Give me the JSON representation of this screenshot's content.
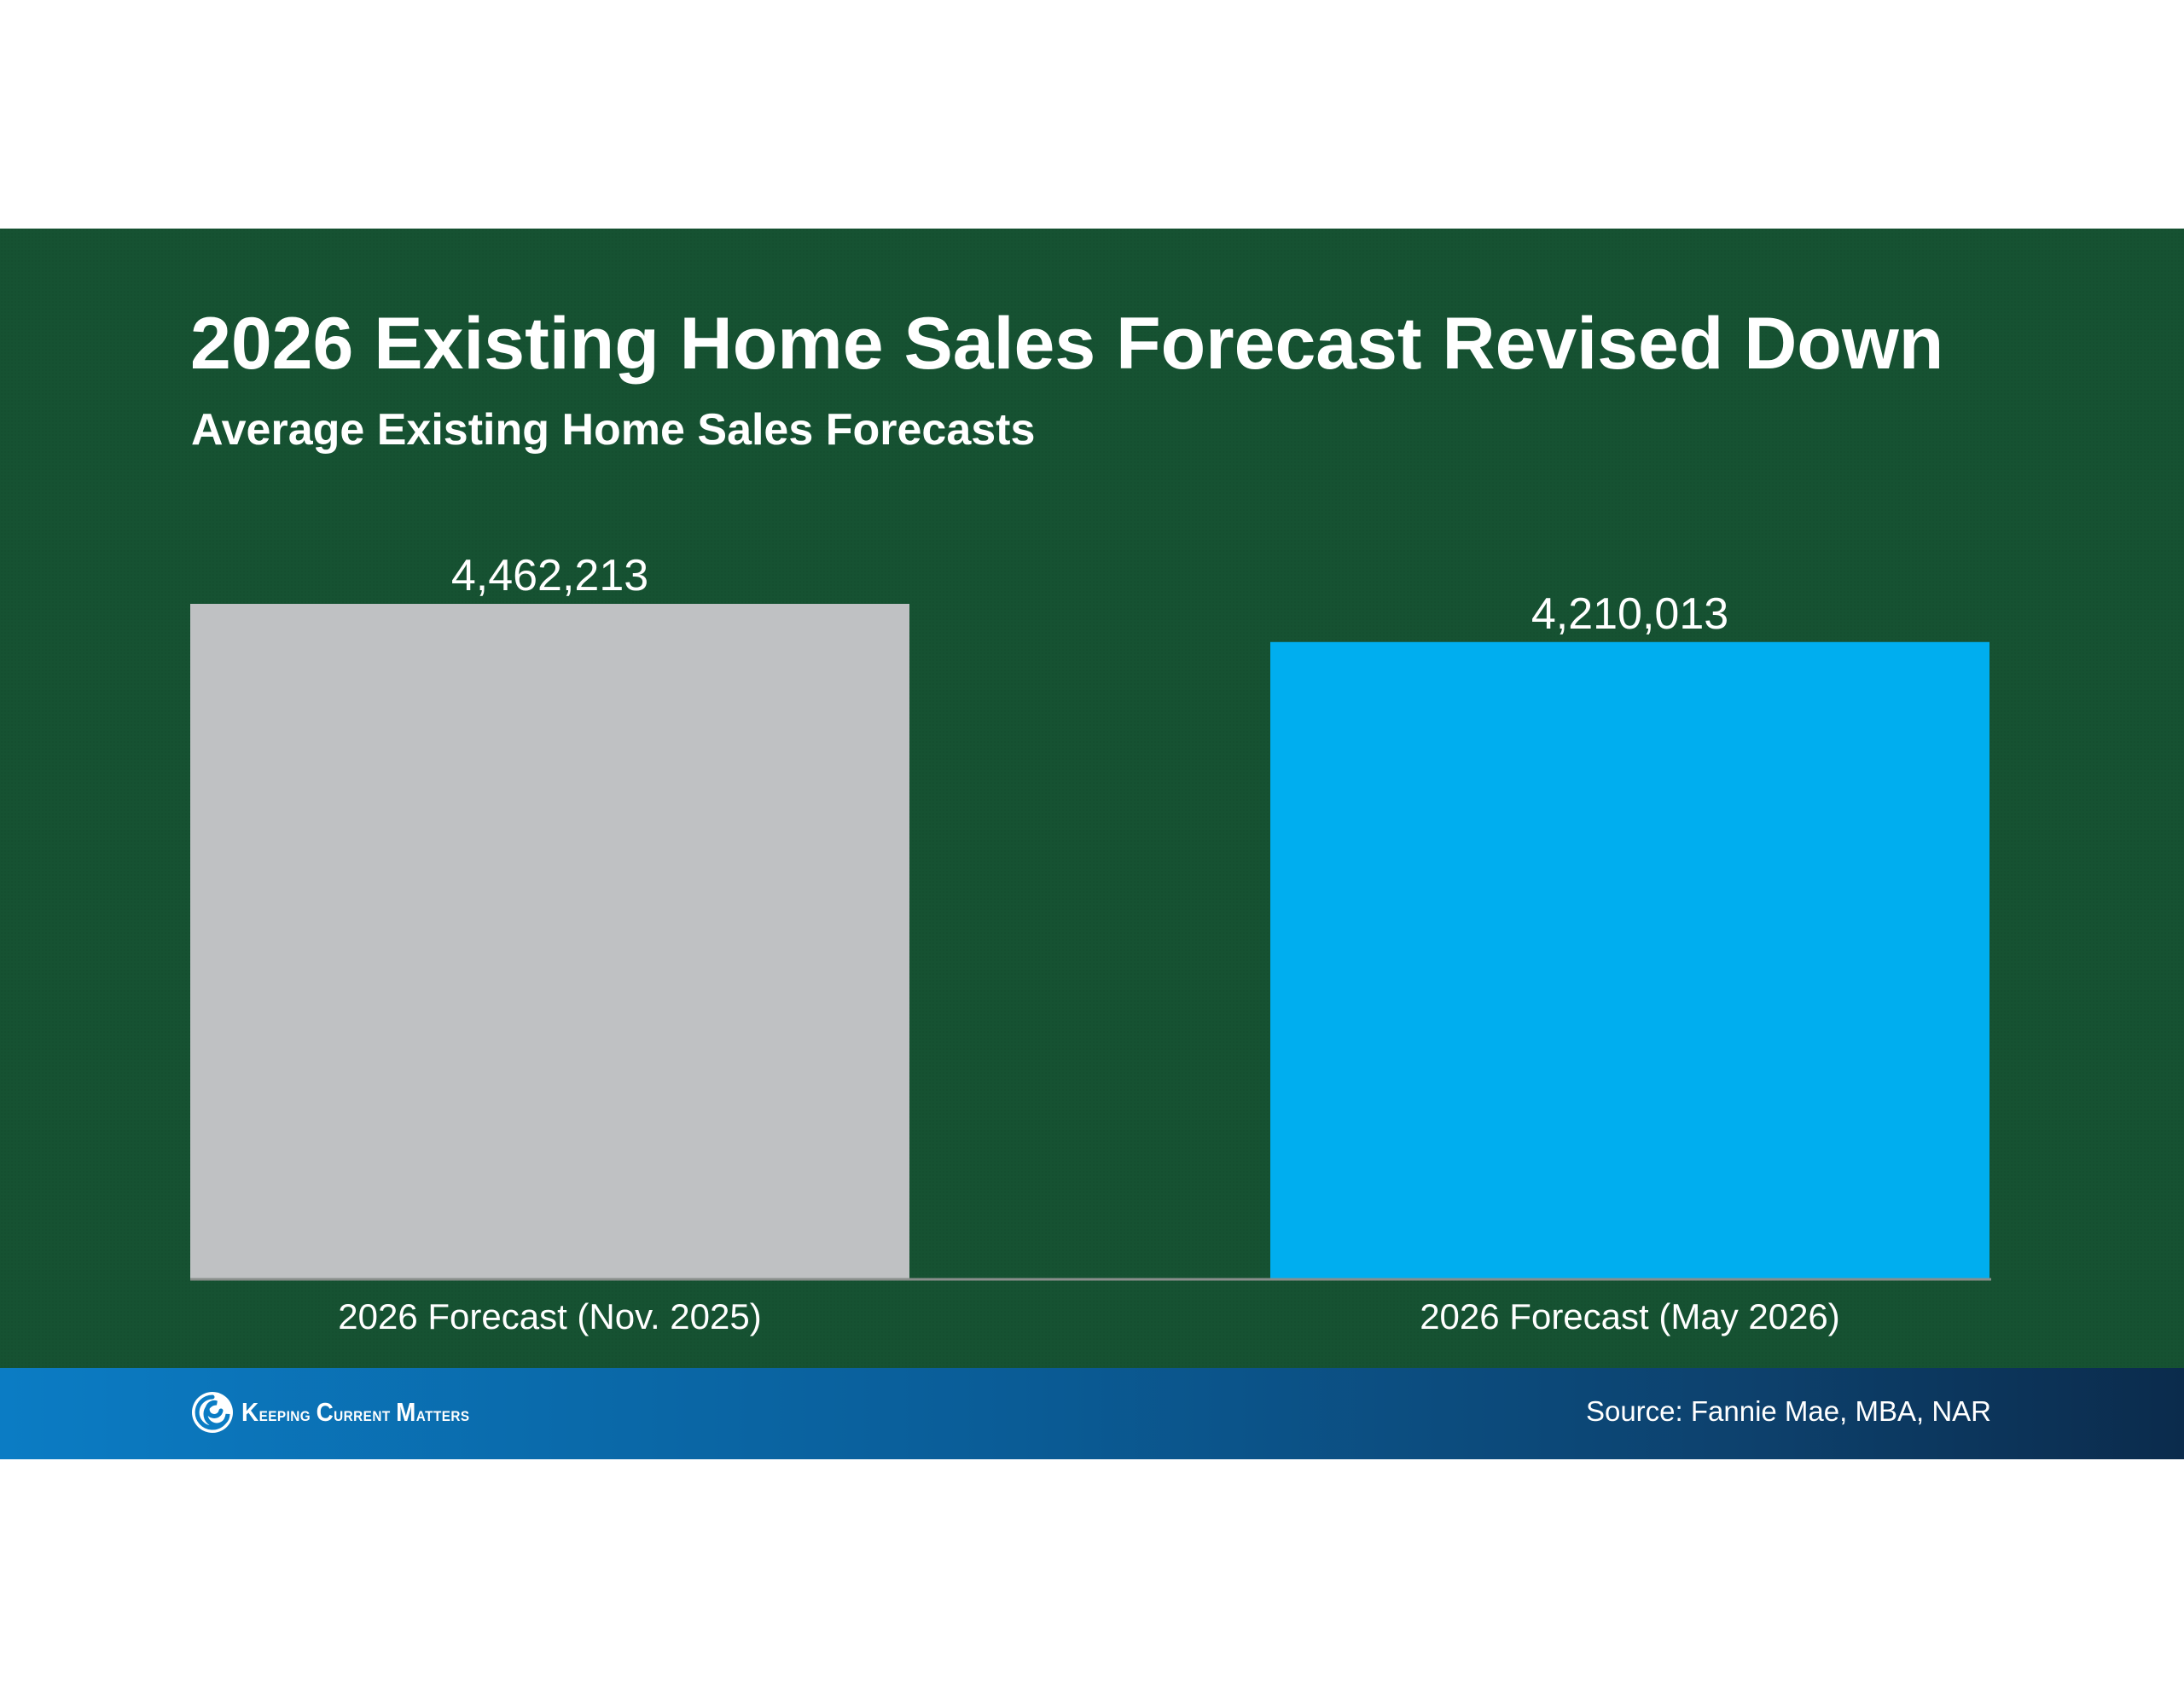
{
  "title": "2026 Existing Home Sales Forecast Revised Down",
  "subtitle": "Average Existing Home Sales Forecasts",
  "chart_data": {
    "type": "bar",
    "title": "2026 Existing Home Sales Forecast Revised Down",
    "subtitle": "Average Existing Home Sales Forecasts",
    "categories": [
      "2026 Forecast (Nov. 2025)",
      "2026 Forecast (May 2026)"
    ],
    "values": [
      4462213,
      4210013
    ],
    "value_labels": [
      "4,462,213",
      "4,210,013"
    ],
    "bar_colors": [
      "#bfc1c3",
      "#00aeef"
    ],
    "xlabel": "",
    "ylabel": "",
    "ylim": [
      0,
      4462213
    ],
    "grid": false,
    "legend": "none"
  },
  "footer": {
    "logo_text_parts": [
      {
        "cap": "K",
        "rest": "eeping"
      },
      {
        "cap": "C",
        "rest": "urrent"
      },
      {
        "cap": "M",
        "rest": "atters"
      }
    ],
    "source": "Source: Fannie Mae, MBA, NAR"
  },
  "colors": {
    "background": "#165232",
    "footer_start": "#0b7cc4",
    "footer_end": "#0b2b4c",
    "axis_line": "#8a8f8c",
    "text": "#ffffff"
  },
  "icons": {
    "logo": "keeping-current-matters-swirl-icon"
  }
}
